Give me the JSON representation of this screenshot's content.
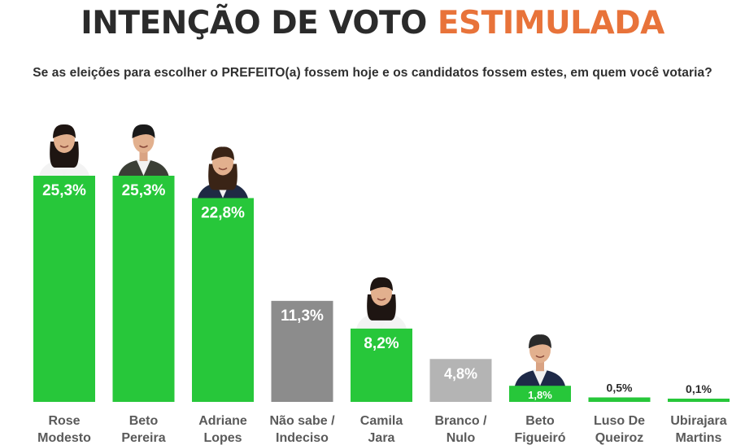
{
  "header": {
    "title_part1": "INTENÇÃO DE VOTO",
    "title_part2": "ESTIMULADA",
    "subtitle": "Se as eleições para escolher o PREFEITO(a) fossem hoje e os candidatos fossem estes, em quem você votaria?"
  },
  "colors": {
    "title_dark": "#2b2b2b",
    "title_accent": "#e8733a",
    "candidate_bar": "#27c73a",
    "undecided_bar": "#8c8c8c",
    "blank_null_bar": "#b4b4b4",
    "label_text": "#5a5a5a"
  },
  "chart_data": {
    "type": "bar",
    "title": "INTENÇÃO DE VOTO ESTIMULADA",
    "categories": [
      [
        "Rose",
        "Modesto"
      ],
      [
        "Beto",
        "Pereira"
      ],
      [
        "Adriane",
        "Lopes"
      ],
      [
        "Não sabe /",
        "Indeciso"
      ],
      [
        "Camila",
        "Jara"
      ],
      [
        "Branco /",
        "Nulo"
      ],
      [
        "Beto",
        "Figueiró"
      ],
      [
        "Luso De",
        "Queiroz"
      ],
      [
        "Ubirajara",
        "Martins"
      ]
    ],
    "values": [
      25.3,
      25.3,
      22.8,
      11.3,
      8.2,
      4.8,
      1.8,
      0.5,
      0.1
    ],
    "value_labels": [
      "25,3%",
      "25,3%",
      "22,8%",
      "11,3%",
      "8,2%",
      "4,8%",
      "1,8%",
      "0,5%",
      "0,1%"
    ],
    "bar_kinds": [
      "candidate",
      "candidate",
      "candidate",
      "undecided",
      "candidate",
      "blank",
      "candidate",
      "candidate",
      "candidate"
    ],
    "has_photo": [
      true,
      true,
      true,
      false,
      true,
      false,
      true,
      false,
      false
    ],
    "ylim": [
      0,
      25.3
    ],
    "grid": false,
    "legend": "none",
    "xlabel": "",
    "ylabel": ""
  }
}
